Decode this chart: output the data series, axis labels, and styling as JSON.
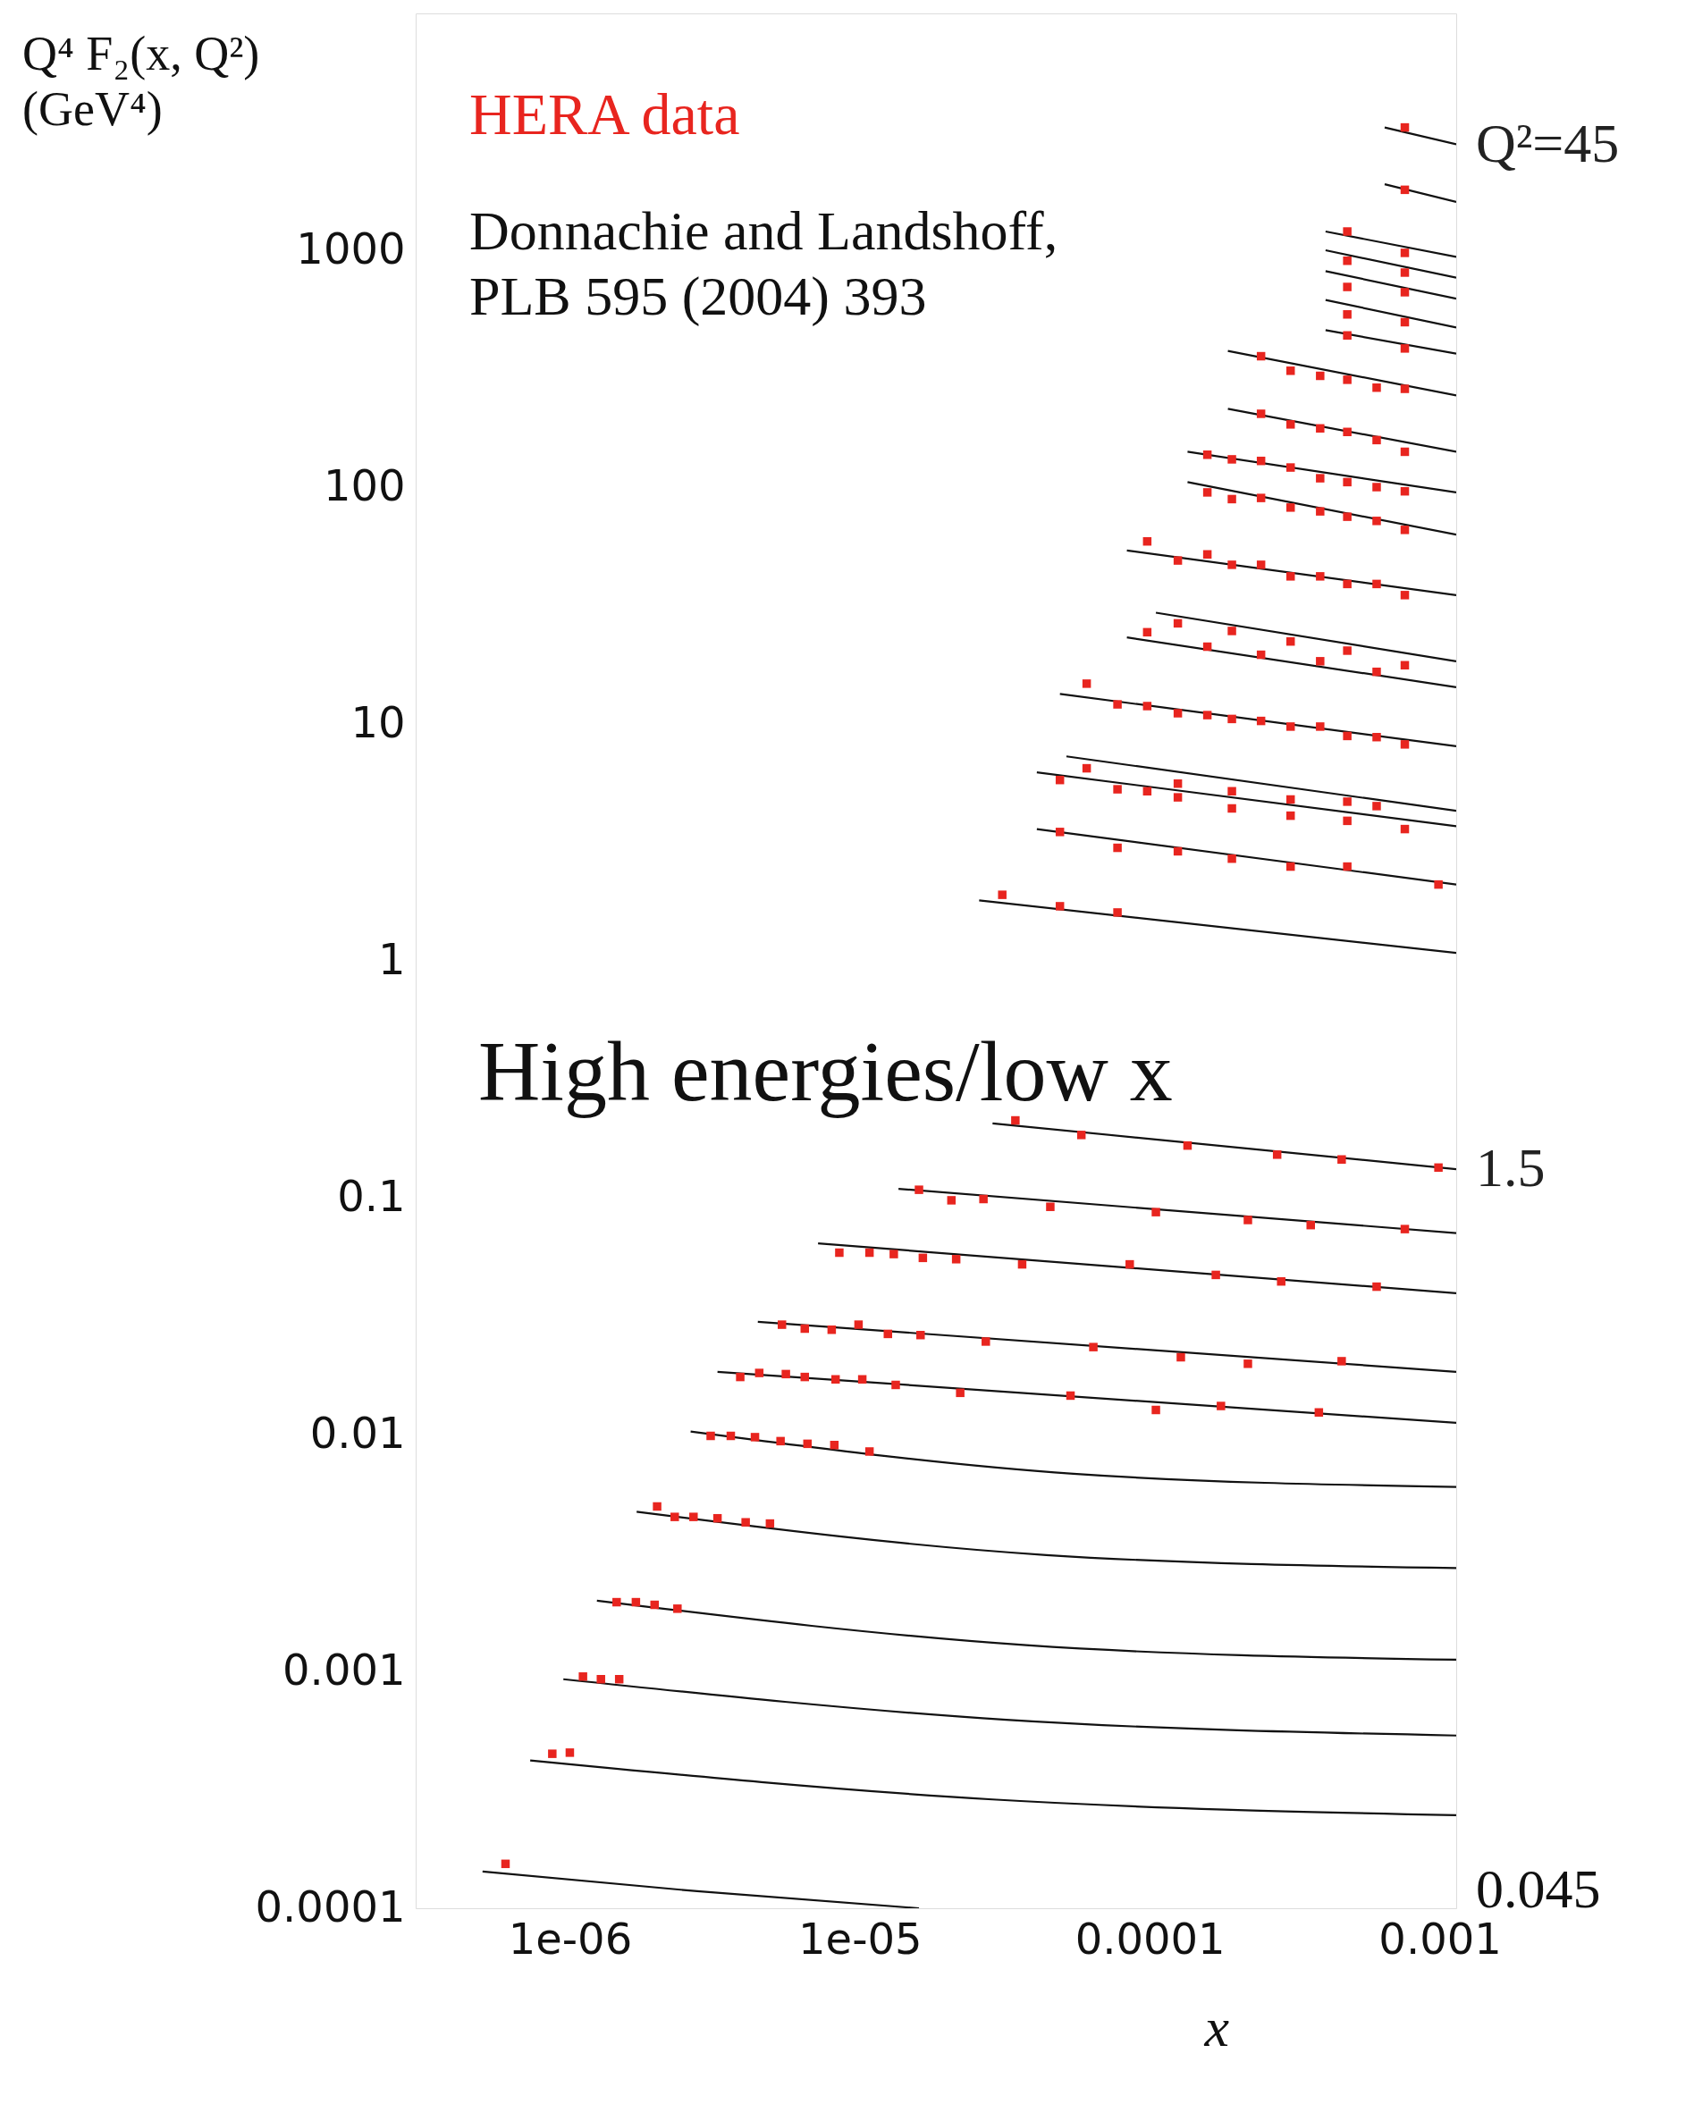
{
  "chart_data": {
    "type": "line",
    "log": "xy",
    "xlabel": "x",
    "ylabel": "Q⁴ F₂(x, Q²)\n(GeV⁴)",
    "xlim": [
      2.94e-07,
      0.00114
    ],
    "ylim": [
      0.0001,
      10000
    ],
    "xticks": [
      {
        "value": 1e-06,
        "label": "1e-06"
      },
      {
        "value": 1e-05,
        "label": "1e-05"
      },
      0.0001,
      0.001
    ],
    "yticks": [
      0.0001,
      0.001,
      0.01,
      0.1,
      1,
      10,
      100,
      1000
    ],
    "annotations": [
      "Donnachie and Landshoff,\nPLB 595 (2004) 393",
      "High energies/low x",
      {
        "text": "Q²=45",
        "x": 0.00114,
        "y": 2800
      },
      {
        "text": "1.5",
        "x": 0.00114,
        "y": 0.132
      },
      "0.045"
    ],
    "series": [
      {
        "type": "line",
        "color": "#111111",
        "x": [
          0.000646,
          0.00114
        ],
        "values": [
          3300,
          2800
        ]
      },
      {
        "type": "line",
        "color": "#111111",
        "x": [
          0.000646,
          0.00114
        ],
        "values": [
          1900,
          1600
        ]
      },
      {
        "type": "line",
        "color": "#111111",
        "x": [
          0.000404,
          0.00114
        ],
        "values": [
          1200,
          938
        ]
      },
      {
        "type": "line",
        "color": "#111111",
        "x": [
          0.000404,
          0.00114
        ],
        "values": [
          1000,
          766
        ]
      },
      {
        "type": "line",
        "color": "#111111",
        "x": [
          0.000404,
          0.00114
        ],
        "values": [
          816,
          625
        ]
      },
      {
        "type": "line",
        "color": "#111111",
        "x": [
          0.000404,
          0.00114
        ],
        "values": [
          617,
          472
        ]
      },
      {
        "type": "line",
        "color": "#111111",
        "x": [
          0.000404,
          0.00114
        ],
        "values": [
          460,
          366
        ]
      },
      {
        "type": "line",
        "color": "#111111",
        "x": [
          0.000186,
          0.00114
        ],
        "values": [
          376,
          244
        ]
      },
      {
        "type": "line",
        "color": "#111111",
        "x": [
          0.000186,
          0.00114
        ],
        "values": [
          214,
          141
        ]
      },
      {
        "type": "line",
        "color": "#111111",
        "x": [
          0.000135,
          0.00114
        ],
        "values": [
          141,
          95
        ]
      },
      {
        "type": "line",
        "color": "#111111",
        "x": [
          0.000135,
          0.00114
        ],
        "values": [
          105,
          63
        ]
      },
      {
        "type": "line",
        "color": "#111111",
        "x": [
          8.34e-05,
          0.00114
        ],
        "values": [
          54,
          35
        ]
      },
      {
        "type": "line",
        "color": "#111111",
        "x": [
          0.000105,
          0.00114
        ],
        "values": [
          29.5,
          18.4
        ]
      },
      {
        "type": "line",
        "color": "#111111",
        "x": [
          8.34e-05,
          0.00114
        ],
        "values": [
          23.2,
          14.3
        ]
      },
      {
        "type": "line",
        "color": "#111111",
        "x": [
          4.9e-05,
          0.00114
        ],
        "values": [
          13.4,
          8.05
        ]
      },
      {
        "type": "line",
        "color": "#111111",
        "x": [
          5.16e-05,
          0.00114
        ],
        "values": [
          7.3,
          4.3
        ]
      },
      {
        "type": "line",
        "color": "#111111",
        "x": [
          4.08e-05,
          0.00114
        ],
        "values": [
          6.25,
          3.7
        ]
      },
      {
        "type": "line",
        "color": "#111111",
        "x": [
          4.08e-05,
          0.00114
        ],
        "values": [
          3.6,
          2.1
        ]
      },
      {
        "type": "line",
        "color": "#111111",
        "x": [
          2.58e-05,
          0.00114
        ],
        "values": [
          1.8,
          1.08
        ]
      },
      {
        "type": "line",
        "color": "#111111",
        "x": [
          2.87e-05,
          0.00114
        ],
        "values": [
          0.206,
          0.132
        ]
      },
      {
        "type": "line",
        "color": "#111111",
        "x": [
          1.36e-05,
          0.00114
        ],
        "values": [
          0.109,
          0.0709
        ]
      },
      {
        "type": "line",
        "color": "#111111",
        "x": [
          7.18e-06,
          0.00114
        ],
        "values": [
          0.0641,
          0.0395
        ]
      },
      {
        "type": "line",
        "color": "#111111",
        "x": [
          4.45e-06,
          0.00114
        ],
        "values": [
          0.0299,
          0.0184
        ]
      },
      {
        "type": "line",
        "color": "#111111",
        "x": [
          3.23e-06,
          0.00114
        ],
        "values": [
          0.0184,
          0.0112
        ]
      },
      {
        "type": "line",
        "color": "#111111",
        "x": [
          2.61e-06,
          5.45e-05,
          0.00114
        ],
        "values": [
          0.0103,
          0.00683,
          0.00601
        ]
      },
      {
        "type": "line",
        "color": "#111111",
        "x": [
          1.7e-06,
          4.4e-05,
          0.00114
        ],
        "values": [
          0.00472,
          0.0031,
          0.00273
        ]
      },
      {
        "type": "line",
        "color": "#111111",
        "x": [
          1.24e-06,
          3.75e-05,
          0.00114
        ],
        "values": [
          0.00199,
          0.00129,
          0.00112
        ]
      },
      {
        "type": "line",
        "color": "#111111",
        "x": [
          9.5e-07,
          3.2e-05,
          0.00114
        ],
        "values": [
          0.000927,
          0.000625,
          0.000536
        ]
      },
      {
        "type": "line",
        "color": "#111111",
        "x": [
          7.3e-07,
          2.87e-05,
          0.00114
        ],
        "values": [
          0.000421,
          0.000288,
          0.000247
        ]
      },
      {
        "type": "line",
        "color": "#111111",
        "x": [
          5e-07,
          2.75e-06,
          1.6e-05
        ],
        "values": [
          0.000143,
          0.000118,
          0.0001
        ]
      },
      {
        "type": "scatter",
        "name": "HERA data",
        "color": "#e8251f",
        "marker": "square",
        "x": [
          0.000758,
          0.000758,
          0.00048,
          0.000758,
          0.00048,
          0.000758,
          0.00048,
          0.000758,
          0.00048,
          0.000758,
          0.00048,
          0.000758,
          0.000242,
          0.000306,
          0.000387,
          0.00048,
          0.000606,
          0.000758,
          0.000242,
          0.000306,
          0.000387,
          0.00048,
          0.000606,
          0.000758,
          0.000158,
          0.000192,
          0.000242,
          0.000306,
          0.000387,
          0.00048,
          0.000606,
          0.000758,
          0.000158,
          0.000192,
          0.000242,
          0.000306,
          0.000387,
          0.00048,
          0.000606,
          0.000758,
          9.8e-05,
          0.000125,
          0.000158,
          0.000192,
          0.000242,
          0.000306,
          0.000387,
          0.00048,
          0.000606,
          0.000758,
          0.000125,
          0.000192,
          0.000306,
          0.00048,
          0.000758,
          9.8e-05,
          0.000158,
          0.000242,
          0.000387,
          0.000606,
          6.06e-05,
          7.74e-05,
          9.8e-05,
          0.000125,
          0.000158,
          0.000192,
          0.000242,
          0.000306,
          0.000387,
          0.00048,
          0.000606,
          0.000758,
          6.06e-05,
          0.000125,
          0.000192,
          0.000306,
          0.00048,
          0.000606,
          4.9e-05,
          7.74e-05,
          9.8e-05,
          0.000125,
          0.000192,
          0.000306,
          0.00048,
          0.000758,
          4.9e-05,
          7.74e-05,
          0.000125,
          0.000192,
          0.000306,
          0.00048,
          0.00099,
          3.1e-05,
          4.9e-05,
          7.74e-05,
          3.44e-05,
          5.81e-05,
          0.000135,
          0.000275,
          0.000459,
          0.00099,
          1.6e-05,
          2.07e-05,
          2.67e-05,
          4.54e-05,
          0.000105,
          0.000218,
          0.000359,
          0.000758,
          8.5e-06,
          1.08e-05,
          1.31e-05,
          1.65e-05,
          2.15e-05,
          3.63e-05,
          8.53e-05,
          0.000169,
          0.000284,
          0.000606,
          5.39e-06,
          6.46e-06,
          8e-06,
          9.9e-06,
          1.25e-05,
          1.62e-05,
          2.72e-05,
          6.39e-05,
          0.000128,
          0.000218,
          0.000459,
          3.87e-06,
          4.5e-06,
          5.56e-06,
          6.46e-06,
          8.25e-06,
          1.02e-05,
          1.33e-05,
          2.22e-05,
          5.33e-05,
          0.000105,
          0.000176,
          0.000383,
          3.06e-06,
          3.59e-06,
          4.35e-06,
          5.33e-06,
          6.6e-06,
          8.17e-06,
          1.08e-05,
          2e-06,
          2.3e-06,
          2.67e-06,
          3.23e-06,
          4.04e-06,
          4.9e-06,
          1.45e-06,
          1.69e-06,
          1.96e-06,
          2.35e-06,
          1.11e-06,
          1.28e-06,
          1.48e-06,
          8.7e-07,
          1e-06,
          6e-07
        ],
        "values": [
          3300,
          1800,
          1200,
          975,
          903,
          805,
          700,
          665,
          536,
          497,
          437,
          385,
          357,
          310,
          295,
          284,
          263,
          260,
          204,
          184,
          177,
          171,
          158,
          141,
          137,
          131,
          129,
          121,
          109,
          105,
          100,
          96,
          95,
          89,
          90,
          82,
          79,
          75,
          72,
          66,
          59,
          49,
          52,
          47,
          47,
          42,
          42,
          39,
          39,
          35,
          26.6,
          24.7,
          22.3,
          20.4,
          17.7,
          24.4,
          21.2,
          19.6,
          18.4,
          16.6,
          14.8,
          12.1,
          11.9,
          11.1,
          10.9,
          10.5,
          10.3,
          9.75,
          9.75,
          8.9,
          8.8,
          8.2,
          6.5,
          5.6,
          5.2,
          4.8,
          4.7,
          4.5,
          5.8,
          5.3,
          5.2,
          4.9,
          4.4,
          4.1,
          3.9,
          3.6,
          3.5,
          3.0,
          2.9,
          2.7,
          2.5,
          2.5,
          2.1,
          1.9,
          1.7,
          1.6,
          0.212,
          0.184,
          0.166,
          0.152,
          0.145,
          0.134,
          0.108,
          0.0975,
          0.0987,
          0.0915,
          0.0869,
          0.0805,
          0.0766,
          0.0737,
          0.0586,
          0.0586,
          0.0578,
          0.0557,
          0.055,
          0.0523,
          0.0523,
          0.0472,
          0.0443,
          0.0421,
          0.0291,
          0.028,
          0.0277,
          0.0291,
          0.0266,
          0.0263,
          0.0247,
          0.0234,
          0.0212,
          0.0199,
          0.0204,
          0.0175,
          0.0182,
          0.018,
          0.0175,
          0.0171,
          0.0171,
          0.0162,
          0.015,
          0.0146,
          0.0127,
          0.0132,
          0.0124,
          0.00987,
          0.00987,
          0.00975,
          0.00938,
          0.00914,
          0.00903,
          0.00848,
          0.00497,
          0.00449,
          0.00449,
          0.00443,
          0.00426,
          0.00421,
          0.00196,
          0.00196,
          0.00191,
          0.00184,
          0.000951,
          0.000927,
          0.000927,
          0.000449,
          0.000454,
          0.000154
        ]
      }
    ]
  }
}
